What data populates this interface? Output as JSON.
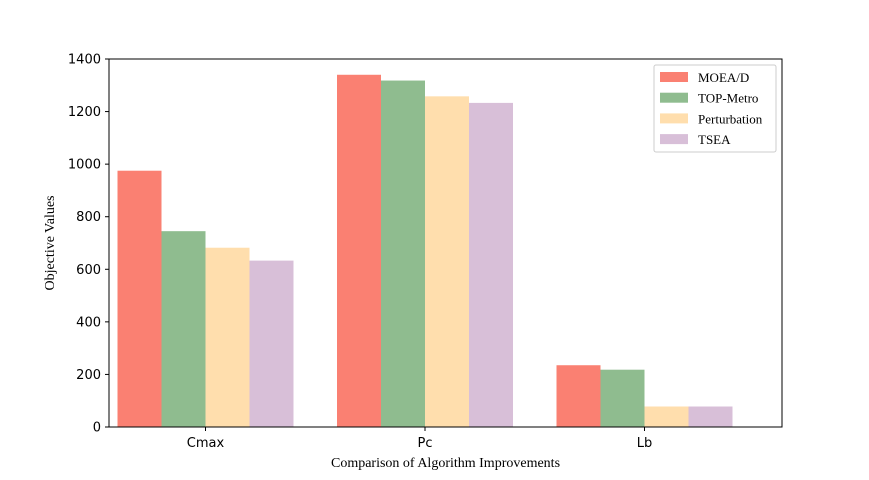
{
  "chart_data": {
    "type": "bar",
    "title": "",
    "xlabel": "Comparison of Algorithm Improvements",
    "ylabel": "Objective Values",
    "categories": [
      "Cmax",
      "Pc",
      "Lb"
    ],
    "series": [
      {
        "name": "MOEA/D",
        "color": "#fa8072",
        "values": [
          975,
          1340,
          235
        ]
      },
      {
        "name": "TOP-Metro",
        "color": "#8fbc8f",
        "values": [
          745,
          1318,
          218
        ]
      },
      {
        "name": "Perturbation",
        "color": "#ffdead",
        "values": [
          682,
          1258,
          78
        ]
      },
      {
        "name": "TSEA",
        "color": "#d8bfd8",
        "values": [
          633,
          1233,
          78
        ]
      }
    ],
    "ylim": [
      0,
      1400
    ],
    "yticks": [
      0,
      200,
      400,
      600,
      800,
      1000,
      1200,
      1400
    ],
    "grid": false,
    "legend_position": "top-right"
  }
}
